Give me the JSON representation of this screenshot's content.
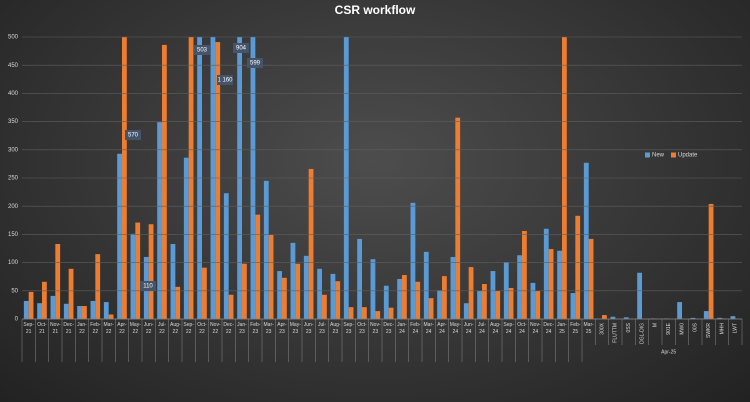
{
  "chart_data": {
    "type": "bar",
    "title": "CSR workflow",
    "categories": [
      "Sep-21",
      "Oct-21",
      "Nov-21",
      "Dec-21",
      "Jan-22",
      "Feb-22",
      "Mar-22",
      "Apr-22",
      "May-22",
      "Jun-22",
      "Jul-22",
      "Aug-22",
      "Sep-22",
      "Oct-22",
      "Nov-22",
      "Dec-22",
      "Jan-23",
      "Feb-23",
      "Mar-23",
      "Apr-23",
      "May-23",
      "Jun-23",
      "Jul-23",
      "Aug-23",
      "Sep-23",
      "Oct-23",
      "Nov-23",
      "Dec-23",
      "Jan-24",
      "Feb-24",
      "Mar-24",
      "Apr-24",
      "May-24",
      "Jun-24",
      "Jul-24",
      "Aug-24",
      "Sep-24",
      "Oct-24",
      "Nov-24",
      "Dec-24",
      "Jan-25",
      "Feb-25",
      "Mar-25",
      {
        "label": "300X",
        "group": "Apr-25"
      },
      {
        "label": "FLUTTM",
        "group": "Apr-25"
      },
      {
        "label": "0SS",
        "group": "Apr-25"
      },
      {
        "label": "DGL-DIG",
        "group": "Apr-25"
      },
      {
        "label": "M",
        "group": "Apr-25"
      },
      {
        "label": "901E",
        "group": "Apr-25"
      },
      {
        "label": "MW0",
        "group": "Apr-25"
      },
      {
        "label": "00S",
        "group": "Apr-25"
      },
      {
        "label": "SWKR",
        "group": "Apr-25"
      },
      {
        "label": "MHH",
        "group": "Apr-25"
      },
      {
        "label": "LWT",
        "group": "Apr-25"
      }
    ],
    "series": [
      {
        "name": "New",
        "color": "#5b9bd5",
        "values": [
          32,
          28,
          41,
          27,
          23,
          32,
          30,
          293,
          151,
          110,
          349,
          133,
          286,
          503,
          1160,
          223,
          904,
          599,
          245,
          85,
          135,
          112,
          89,
          80,
          500,
          142,
          106,
          59,
          71,
          206,
          119,
          51,
          110,
          28,
          50,
          85,
          101,
          113,
          64,
          160,
          121,
          46,
          277,
          0,
          4,
          3,
          82,
          1,
          1,
          30,
          2,
          14,
          2,
          5
        ],
        "value_labels": [
          null,
          null,
          null,
          null,
          null,
          null,
          null,
          null,
          null,
          "110",
          null,
          null,
          null,
          "503",
          "1 160",
          null,
          "904",
          "599",
          null,
          null,
          null,
          null,
          null,
          null,
          null,
          null,
          null,
          null,
          null,
          null,
          null,
          null,
          null,
          null,
          null,
          null,
          null,
          null,
          null,
          null,
          null,
          null,
          null,
          null,
          null,
          null,
          null,
          null,
          null,
          null,
          null,
          null,
          null,
          null
        ]
      },
      {
        "name": "Update",
        "color": "#ed7d31",
        "values": [
          48,
          66,
          133,
          89,
          23,
          115,
          8,
          570,
          171,
          168,
          486,
          57,
          500,
          91,
          491,
          43,
          98,
          185,
          149,
          73,
          98,
          266,
          43,
          67,
          21,
          21,
          14,
          20,
          78,
          66,
          37,
          76,
          357,
          92,
          62,
          50,
          55,
          156,
          50,
          124,
          500,
          183,
          142,
          7,
          0,
          0,
          0,
          0,
          0,
          0,
          0,
          204,
          1,
          0
        ],
        "value_labels": [
          null,
          null,
          null,
          null,
          null,
          null,
          null,
          "570",
          null,
          null,
          null,
          null,
          null,
          null,
          null,
          null,
          null,
          null,
          null,
          null,
          null,
          null,
          null,
          null,
          null,
          null,
          null,
          null,
          null,
          null,
          null,
          null,
          null,
          null,
          null,
          null,
          null,
          null,
          null,
          null,
          null,
          null,
          null,
          null,
          null,
          null,
          null,
          null,
          null,
          null,
          null,
          null,
          null,
          null
        ]
      }
    ],
    "ylim": [
      0,
      500
    ],
    "yticks": [
      0,
      50,
      100,
      150,
      200,
      250,
      300,
      350,
      400,
      450,
      500
    ],
    "grid": true,
    "legend": "right"
  }
}
